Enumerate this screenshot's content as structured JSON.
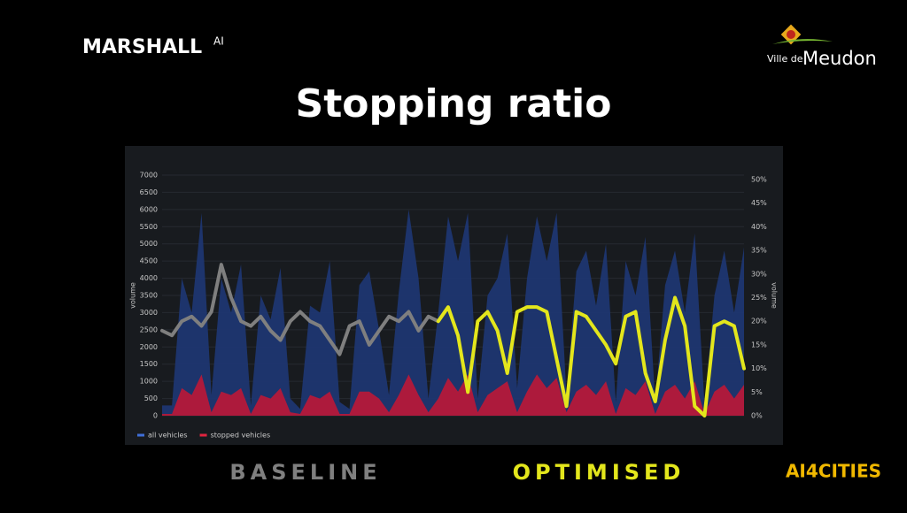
{
  "header": {
    "brand": "MARSHALL",
    "brand_suffix": "AI",
    "partner_prefix": "Ville de",
    "partner": "Meudon",
    "title": "Stopping ratio"
  },
  "chart_data": {
    "type": "area",
    "y_label": "volume",
    "y2_label": "volume",
    "categories": [
      null,
      null,
      null,
      null,
      null,
      null,
      null,
      null,
      null,
      null,
      null,
      null,
      null,
      null,
      null,
      null,
      null,
      null,
      null,
      null,
      null,
      null,
      null,
      null,
      null,
      null,
      null,
      null,
      null,
      null,
      null,
      null,
      null,
      null,
      null,
      null,
      null,
      null,
      null,
      null,
      null,
      null,
      null,
      null,
      null,
      null,
      null,
      null,
      null,
      null,
      null,
      null,
      null,
      null,
      null,
      null,
      null,
      null,
      null,
      null
    ],
    "ylim": [
      0,
      7000
    ],
    "yticks": [
      0,
      500,
      1000,
      1500,
      2000,
      2500,
      3000,
      3500,
      4000,
      4500,
      5000,
      5500,
      6000,
      6500,
      7000
    ],
    "y2lim": [
      0,
      50
    ],
    "y2ticks": [
      {
        "value": 0,
        "label": "0%"
      },
      {
        "value": 5,
        "label": "5%"
      },
      {
        "value": 10,
        "label": "10%"
      },
      {
        "value": 15,
        "label": "15%"
      },
      {
        "value": 20,
        "label": "20%"
      },
      {
        "value": 25,
        "label": "25%"
      },
      {
        "value": 30,
        "label": "30%"
      },
      {
        "value": 35,
        "label": "35%"
      },
      {
        "value": 40,
        "label": "40%"
      },
      {
        "value": 45,
        "label": "45%"
      },
      {
        "value": 50,
        "label": "50%"
      }
    ],
    "grid": true,
    "series": [
      {
        "name": "all vehicles",
        "color": "#1d3671",
        "legend_color": "#3f6fd8",
        "values": [
          300,
          300,
          4000,
          3000,
          5900,
          600,
          4000,
          3000,
          4400,
          300,
          3500,
          2800,
          4300,
          500,
          200,
          3200,
          3000,
          4500,
          400,
          200,
          3800,
          4200,
          2500,
          600,
          3600,
          6000,
          4000,
          500,
          3000,
          5800,
          4500,
          5900,
          500,
          3500,
          4000,
          5300,
          800,
          4000,
          5800,
          4500,
          5900,
          600,
          4200,
          4800,
          3200,
          5000,
          400,
          4500,
          3500,
          5200,
          400,
          3800,
          4800,
          3000,
          5300,
          300,
          3500,
          4800,
          3000,
          4900
        ]
      },
      {
        "name": "stopped vehicles",
        "color": "#b5193a",
        "legend_color": "#e0243f",
        "values": [
          50,
          50,
          800,
          600,
          1200,
          100,
          700,
          600,
          800,
          50,
          600,
          500,
          800,
          100,
          50,
          600,
          500,
          700,
          50,
          50,
          700,
          700,
          500,
          100,
          600,
          1200,
          600,
          100,
          500,
          1100,
          700,
          1200,
          100,
          600,
          800,
          1000,
          100,
          700,
          1200,
          800,
          1100,
          100,
          700,
          900,
          600,
          1000,
          50,
          800,
          600,
          1000,
          50,
          700,
          900,
          500,
          1000,
          50,
          700,
          900,
          500,
          900
        ]
      },
      {
        "name": "BASELINE",
        "type": "line",
        "axis": "y2",
        "color": "#7f7f7f",
        "values": [
          18,
          17,
          20,
          21,
          19,
          22,
          32,
          25,
          20,
          19,
          21,
          18,
          16,
          20,
          22,
          20,
          19,
          16,
          13,
          19,
          20,
          15,
          18,
          21,
          20,
          22,
          18,
          21,
          20,
          null,
          null,
          null,
          null,
          null,
          null,
          null,
          null,
          null,
          null,
          null,
          null,
          null,
          null,
          null,
          null,
          null,
          null,
          null,
          null,
          null,
          null,
          null,
          null,
          null,
          null,
          null,
          null,
          null,
          null,
          null
        ]
      },
      {
        "name": "OPTIMISED",
        "type": "line",
        "axis": "y2",
        "color": "#e3e61c",
        "values": [
          null,
          null,
          null,
          null,
          null,
          null,
          null,
          null,
          null,
          null,
          null,
          null,
          null,
          null,
          null,
          null,
          null,
          null,
          null,
          null,
          null,
          null,
          null,
          null,
          null,
          null,
          null,
          null,
          20,
          23,
          17,
          5,
          20,
          22,
          18,
          9,
          22,
          23,
          23,
          22,
          12,
          2,
          22,
          21,
          18,
          15,
          11,
          21,
          22,
          9,
          3,
          16,
          25,
          19,
          2,
          0,
          19,
          20,
          19,
          10
        ]
      }
    ]
  },
  "footer": {
    "partner": "AI4CITIES"
  }
}
